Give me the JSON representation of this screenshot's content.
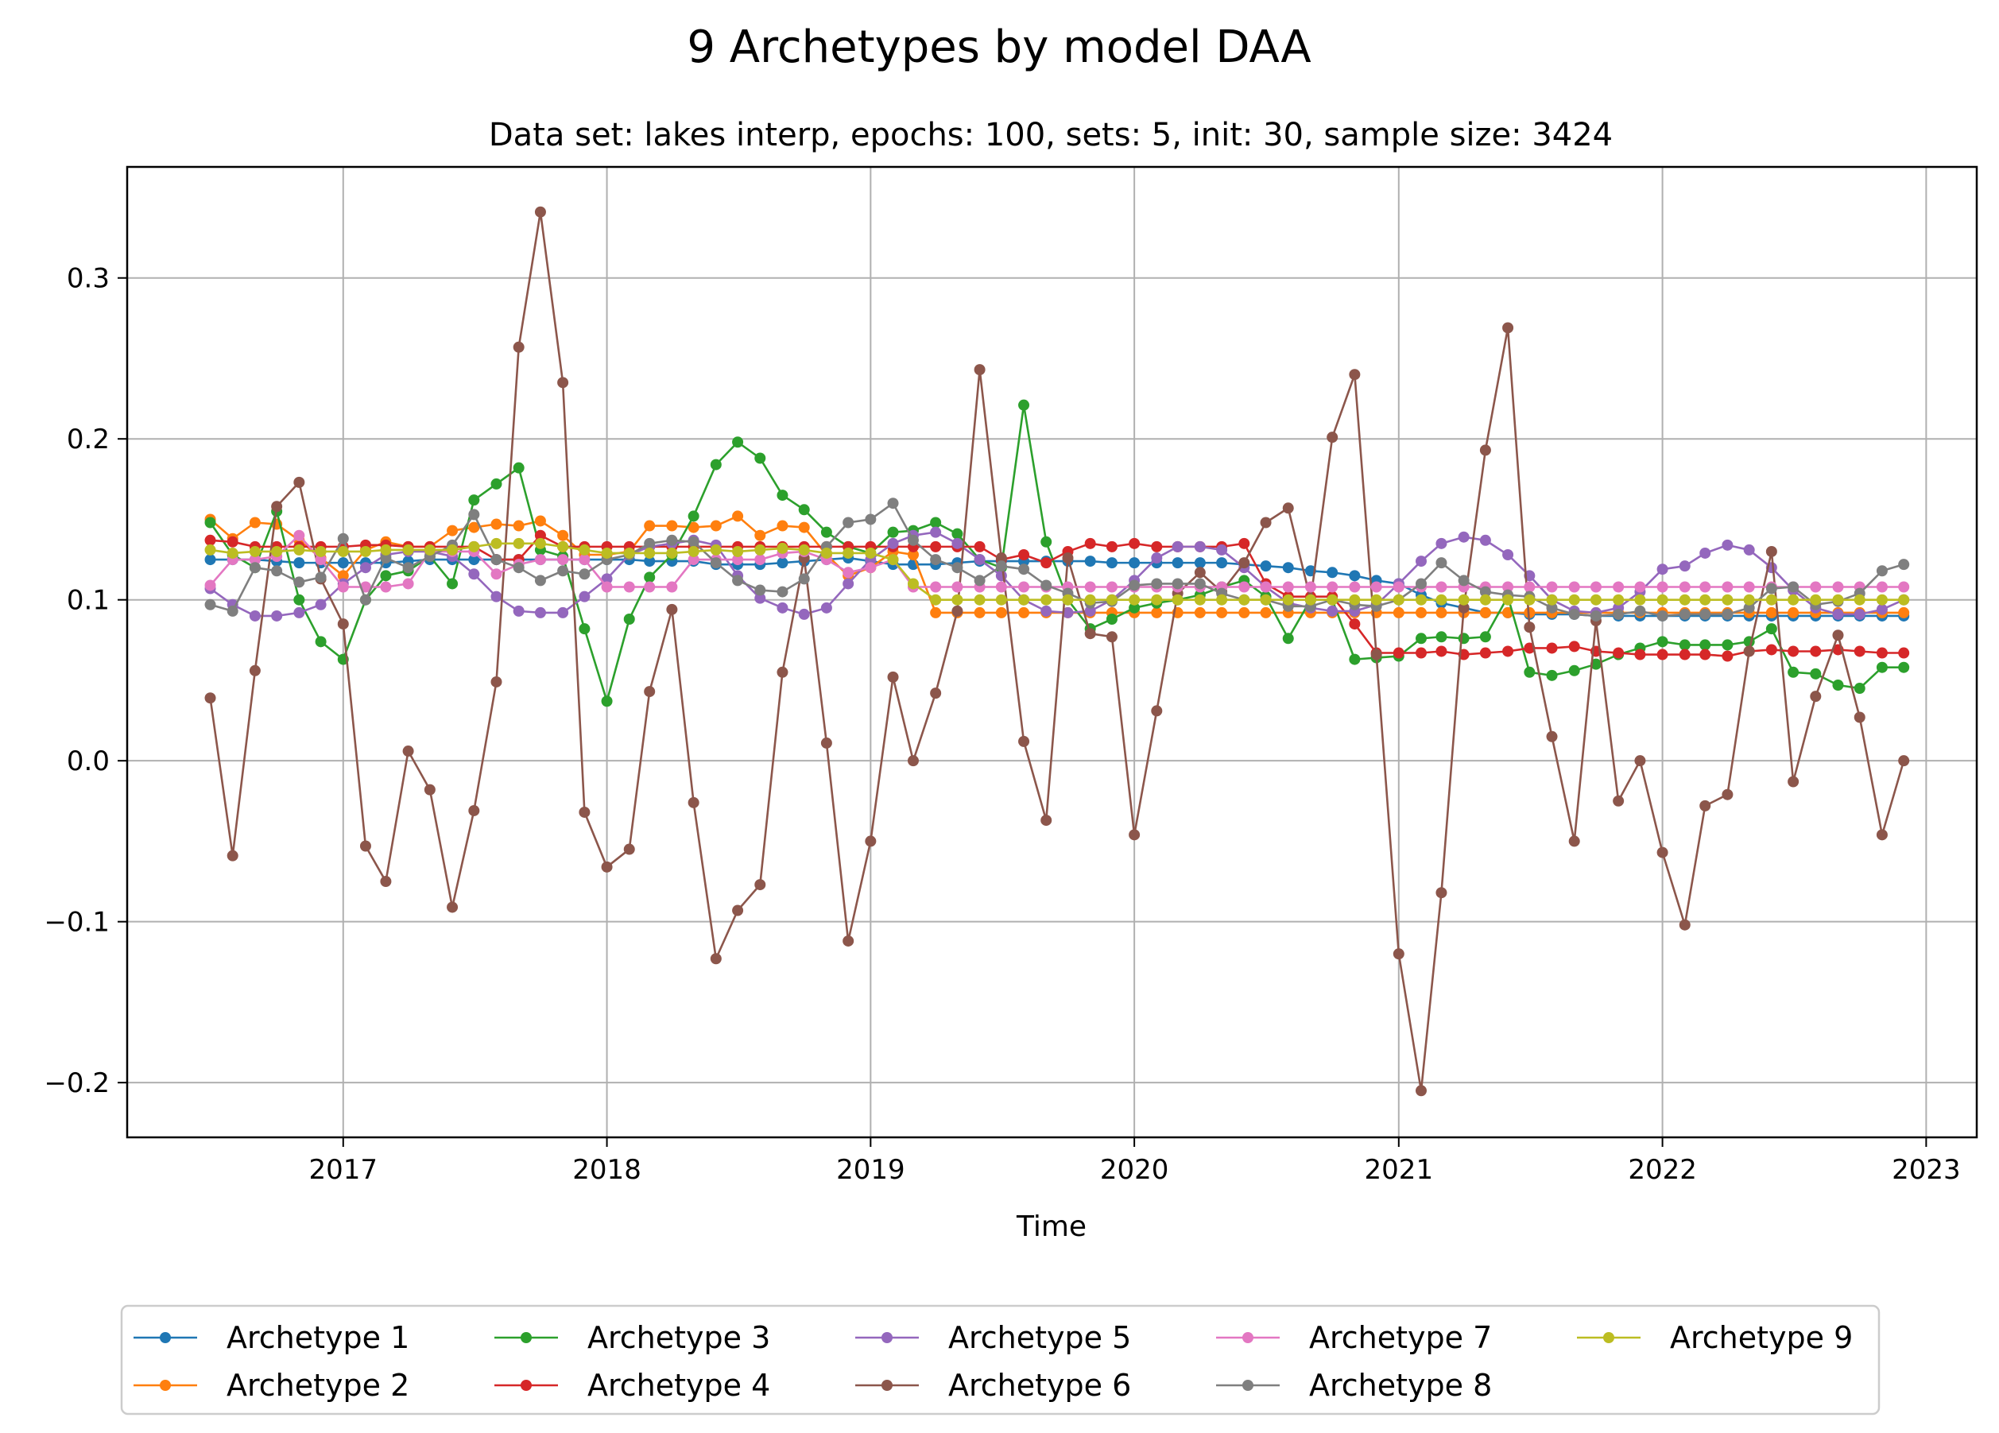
{
  "chart_data": {
    "type": "line",
    "title": "9 Archetypes by model DAA",
    "subtitle": "Data set: lakes interp, epochs: 100, sets: 5, init: 30, sample size: 3424",
    "xlabel": "Time",
    "ylabel": "",
    "x_ticks": [
      "2017",
      "2018",
      "2019",
      "2020",
      "2021",
      "2022",
      "2023"
    ],
    "y_ticks": [
      "0.3",
      "0.2",
      "0.1",
      "0.0",
      "−0.1",
      "−0.2"
    ],
    "y_tick_values": [
      0.3,
      0.2,
      0.1,
      0.0,
      -0.1,
      -0.2
    ],
    "xlim": [
      "2016-03-08",
      "2023-03-12"
    ],
    "ylim": [
      -0.234,
      0.369
    ],
    "grid": true,
    "legend_position": "bottom-center",
    "x": [
      "2016-07",
      "2016-08",
      "2016-09",
      "2016-10",
      "2016-11",
      "2016-12",
      "2017-01",
      "2017-02",
      "2017-03",
      "2017-04",
      "2017-05",
      "2017-06",
      "2017-07",
      "2017-08",
      "2017-09",
      "2017-10",
      "2017-11",
      "2017-12",
      "2018-01",
      "2018-02",
      "2018-03",
      "2018-04",
      "2018-05",
      "2018-06",
      "2018-07",
      "2018-08",
      "2018-09",
      "2018-10",
      "2018-11",
      "2018-12",
      "2019-01",
      "2019-02",
      "2019-03",
      "2019-04",
      "2019-05",
      "2019-06",
      "2019-07",
      "2019-08",
      "2019-09",
      "2019-10",
      "2019-11",
      "2019-12",
      "2020-01",
      "2020-02",
      "2020-03",
      "2020-04",
      "2020-05",
      "2020-06",
      "2020-07",
      "2020-08",
      "2020-09",
      "2020-10",
      "2020-11",
      "2020-12",
      "2021-01",
      "2021-02",
      "2021-03",
      "2021-04",
      "2021-05",
      "2021-06",
      "2021-07",
      "2021-08",
      "2021-09",
      "2021-10",
      "2021-11",
      "2021-12",
      "2022-01",
      "2022-02",
      "2022-03",
      "2022-04",
      "2022-05",
      "2022-06",
      "2022-07",
      "2022-08",
      "2022-09",
      "2022-10",
      "2022-11",
      "2022-12"
    ],
    "series": [
      {
        "name": "Archetype 1",
        "color": "#1f77b4",
        "values": [
          0.125,
          0.125,
          0.125,
          0.124,
          0.123,
          0.123,
          0.123,
          0.123,
          0.123,
          0.124,
          0.125,
          0.125,
          0.125,
          0.125,
          0.125,
          0.125,
          0.125,
          0.125,
          0.125,
          0.125,
          0.124,
          0.124,
          0.124,
          0.122,
          0.122,
          0.122,
          0.123,
          0.124,
          0.125,
          0.126,
          0.124,
          0.122,
          0.122,
          0.122,
          0.123,
          0.124,
          0.124,
          0.124,
          0.124,
          0.124,
          0.124,
          0.123,
          0.123,
          0.123,
          0.123,
          0.123,
          0.123,
          0.122,
          0.121,
          0.12,
          0.118,
          0.117,
          0.115,
          0.112,
          0.11,
          0.103,
          0.098,
          0.095,
          0.092,
          0.092,
          0.091,
          0.091,
          0.091,
          0.09,
          0.09,
          0.09,
          0.09,
          0.09,
          0.09,
          0.09,
          0.09,
          0.09,
          0.09,
          0.09,
          0.09,
          0.09,
          0.09,
          0.09
        ]
      },
      {
        "name": "Archetype 2",
        "color": "#ff7f0e",
        "values": [
          0.15,
          0.138,
          0.148,
          0.147,
          0.137,
          0.126,
          0.115,
          0.131,
          0.136,
          0.133,
          0.133,
          0.143,
          0.145,
          0.147,
          0.146,
          0.149,
          0.14,
          0.128,
          0.128,
          0.13,
          0.146,
          0.146,
          0.145,
          0.146,
          0.152,
          0.14,
          0.146,
          0.145,
          0.128,
          0.115,
          0.12,
          0.13,
          0.128,
          0.092,
          0.092,
          0.092,
          0.092,
          0.092,
          0.092,
          0.092,
          0.092,
          0.092,
          0.092,
          0.092,
          0.092,
          0.092,
          0.092,
          0.092,
          0.092,
          0.092,
          0.092,
          0.092,
          0.092,
          0.092,
          0.092,
          0.092,
          0.092,
          0.092,
          0.092,
          0.092,
          0.092,
          0.092,
          0.092,
          0.092,
          0.092,
          0.092,
          0.092,
          0.092,
          0.092,
          0.092,
          0.092,
          0.092,
          0.092,
          0.092,
          0.092,
          0.092,
          0.092,
          0.092
        ]
      },
      {
        "name": "Archetype 3",
        "color": "#2ca02c",
        "values": [
          0.148,
          0.128,
          0.12,
          0.155,
          0.1,
          0.074,
          0.063,
          0.1,
          0.115,
          0.118,
          0.127,
          0.11,
          0.162,
          0.172,
          0.182,
          0.131,
          0.127,
          0.082,
          0.037,
          0.088,
          0.114,
          0.128,
          0.152,
          0.184,
          0.198,
          0.188,
          0.165,
          0.156,
          0.142,
          0.133,
          0.129,
          0.142,
          0.143,
          0.148,
          0.141,
          0.125,
          0.12,
          0.221,
          0.136,
          0.1,
          0.082,
          0.088,
          0.095,
          0.098,
          0.1,
          0.103,
          0.108,
          0.112,
          0.102,
          0.076,
          0.1,
          0.1,
          0.063,
          0.064,
          0.065,
          0.076,
          0.077,
          0.076,
          0.077,
          0.102,
          0.055,
          0.053,
          0.056,
          0.06,
          0.066,
          0.07,
          0.074,
          0.072,
          0.072,
          0.072,
          0.074,
          0.082,
          0.055,
          0.054,
          0.047,
          0.045,
          0.058,
          0.058
        ]
      },
      {
        "name": "Archetype 4",
        "color": "#d62728",
        "values": [
          0.137,
          0.136,
          0.133,
          0.133,
          0.133,
          0.133,
          0.133,
          0.134,
          0.134,
          0.133,
          0.133,
          0.133,
          0.133,
          0.125,
          0.125,
          0.14,
          0.133,
          0.133,
          0.133,
          0.133,
          0.133,
          0.133,
          0.133,
          0.133,
          0.133,
          0.133,
          0.133,
          0.133,
          0.133,
          0.133,
          0.133,
          0.133,
          0.133,
          0.133,
          0.133,
          0.133,
          0.125,
          0.128,
          0.123,
          0.13,
          0.135,
          0.133,
          0.135,
          0.133,
          0.133,
          0.133,
          0.133,
          0.135,
          0.11,
          0.102,
          0.102,
          0.102,
          0.085,
          0.067,
          0.067,
          0.067,
          0.068,
          0.066,
          0.067,
          0.068,
          0.07,
          0.07,
          0.071,
          0.068,
          0.067,
          0.066,
          0.066,
          0.066,
          0.066,
          0.065,
          0.068,
          0.069,
          0.068,
          0.068,
          0.069,
          0.068,
          0.067,
          0.067
        ]
      },
      {
        "name": "Archetype 5",
        "color": "#9467bd",
        "values": [
          0.107,
          0.097,
          0.09,
          0.09,
          0.092,
          0.097,
          0.11,
          0.12,
          0.128,
          0.13,
          0.13,
          0.127,
          0.116,
          0.102,
          0.093,
          0.092,
          0.092,
          0.102,
          0.113,
          0.128,
          0.133,
          0.135,
          0.137,
          0.134,
          0.115,
          0.101,
          0.095,
          0.091,
          0.095,
          0.11,
          0.125,
          0.135,
          0.14,
          0.142,
          0.135,
          0.125,
          0.115,
          0.1,
          0.093,
          0.092,
          0.093,
          0.1,
          0.112,
          0.126,
          0.133,
          0.133,
          0.131,
          0.12,
          0.108,
          0.098,
          0.095,
          0.093,
          0.093,
          0.097,
          0.11,
          0.124,
          0.135,
          0.139,
          0.137,
          0.128,
          0.115,
          0.1,
          0.093,
          0.092,
          0.095,
          0.105,
          0.119,
          0.121,
          0.129,
          0.134,
          0.131,
          0.12,
          0.106,
          0.095,
          0.091,
          0.091,
          0.094,
          0.1
        ]
      },
      {
        "name": "Archetype 6",
        "color": "#8c564b",
        "values": [
          0.039,
          -0.059,
          0.056,
          0.158,
          0.173,
          0.113,
          0.085,
          -0.053,
          -0.075,
          0.006,
          -0.018,
          -0.091,
          -0.031,
          0.049,
          0.257,
          0.341,
          0.235,
          -0.032,
          -0.066,
          -0.055,
          0.043,
          0.094,
          -0.026,
          -0.123,
          -0.093,
          -0.077,
          0.055,
          0.126,
          0.011,
          -0.112,
          -0.05,
          0.052,
          0.0,
          0.042,
          0.093,
          0.243,
          0.126,
          0.012,
          -0.037,
          0.126,
          0.079,
          0.077,
          -0.046,
          0.031,
          0.104,
          0.117,
          0.105,
          0.123,
          0.148,
          0.157,
          0.1,
          0.201,
          0.24,
          0.066,
          -0.12,
          -0.205,
          -0.082,
          0.095,
          0.193,
          0.269,
          0.083,
          0.015,
          -0.05,
          0.087,
          -0.025,
          0.0,
          -0.057,
          -0.102,
          -0.028,
          -0.021,
          0.068,
          0.13,
          -0.013,
          0.04,
          0.078,
          0.027,
          -0.046,
          0.0
        ]
      },
      {
        "name": "Archetype 7",
        "color": "#e377c2",
        "values": [
          0.109,
          0.125,
          0.125,
          0.127,
          0.14,
          0.125,
          0.108,
          0.108,
          0.108,
          0.11,
          0.13,
          0.13,
          0.13,
          0.116,
          0.122,
          0.125,
          0.125,
          0.125,
          0.108,
          0.108,
          0.108,
          0.108,
          0.125,
          0.125,
          0.125,
          0.125,
          0.129,
          0.13,
          0.125,
          0.117,
          0.12,
          0.125,
          0.108,
          0.108,
          0.108,
          0.108,
          0.108,
          0.108,
          0.108,
          0.108,
          0.108,
          0.108,
          0.108,
          0.108,
          0.108,
          0.108,
          0.108,
          0.108,
          0.108,
          0.108,
          0.108,
          0.108,
          0.108,
          0.108,
          0.108,
          0.108,
          0.108,
          0.108,
          0.108,
          0.108,
          0.108,
          0.108,
          0.108,
          0.108,
          0.108,
          0.108,
          0.108,
          0.108,
          0.108,
          0.108,
          0.108,
          0.108,
          0.108,
          0.108,
          0.108,
          0.108,
          0.108,
          0.108
        ]
      },
      {
        "name": "Archetype 8",
        "color": "#7f7f7f",
        "values": [
          0.097,
          0.093,
          0.12,
          0.118,
          0.111,
          0.114,
          0.138,
          0.1,
          0.126,
          0.12,
          0.127,
          0.134,
          0.153,
          0.125,
          0.12,
          0.112,
          0.118,
          0.116,
          0.125,
          0.128,
          0.135,
          0.137,
          0.136,
          0.123,
          0.112,
          0.106,
          0.105,
          0.113,
          0.133,
          0.148,
          0.15,
          0.16,
          0.137,
          0.125,
          0.12,
          0.112,
          0.121,
          0.119,
          0.109,
          0.104,
          0.098,
          0.099,
          0.109,
          0.11,
          0.11,
          0.11,
          0.104,
          0.1,
          0.1,
          0.096,
          0.096,
          0.1,
          0.097,
          0.096,
          0.1,
          0.11,
          0.123,
          0.112,
          0.105,
          0.103,
          0.102,
          0.095,
          0.091,
          0.09,
          0.091,
          0.093,
          0.09,
          0.091,
          0.091,
          0.091,
          0.095,
          0.107,
          0.108,
          0.097,
          0.099,
          0.104,
          0.118,
          0.122
        ]
      },
      {
        "name": "Archetype 9",
        "color": "#bcbd22",
        "values": [
          0.131,
          0.129,
          0.13,
          0.13,
          0.131,
          0.13,
          0.13,
          0.13,
          0.131,
          0.131,
          0.131,
          0.131,
          0.133,
          0.135,
          0.135,
          0.135,
          0.133,
          0.131,
          0.129,
          0.129,
          0.129,
          0.129,
          0.13,
          0.131,
          0.13,
          0.131,
          0.132,
          0.131,
          0.129,
          0.129,
          0.129,
          0.125,
          0.11,
          0.1,
          0.1,
          0.1,
          0.1,
          0.1,
          0.1,
          0.1,
          0.1,
          0.1,
          0.1,
          0.1,
          0.1,
          0.1,
          0.1,
          0.1,
          0.1,
          0.1,
          0.1,
          0.1,
          0.1,
          0.1,
          0.1,
          0.1,
          0.1,
          0.1,
          0.1,
          0.1,
          0.1,
          0.1,
          0.1,
          0.1,
          0.1,
          0.1,
          0.1,
          0.1,
          0.1,
          0.1,
          0.1,
          0.1,
          0.1,
          0.1,
          0.1,
          0.1,
          0.1,
          0.1
        ]
      }
    ]
  }
}
